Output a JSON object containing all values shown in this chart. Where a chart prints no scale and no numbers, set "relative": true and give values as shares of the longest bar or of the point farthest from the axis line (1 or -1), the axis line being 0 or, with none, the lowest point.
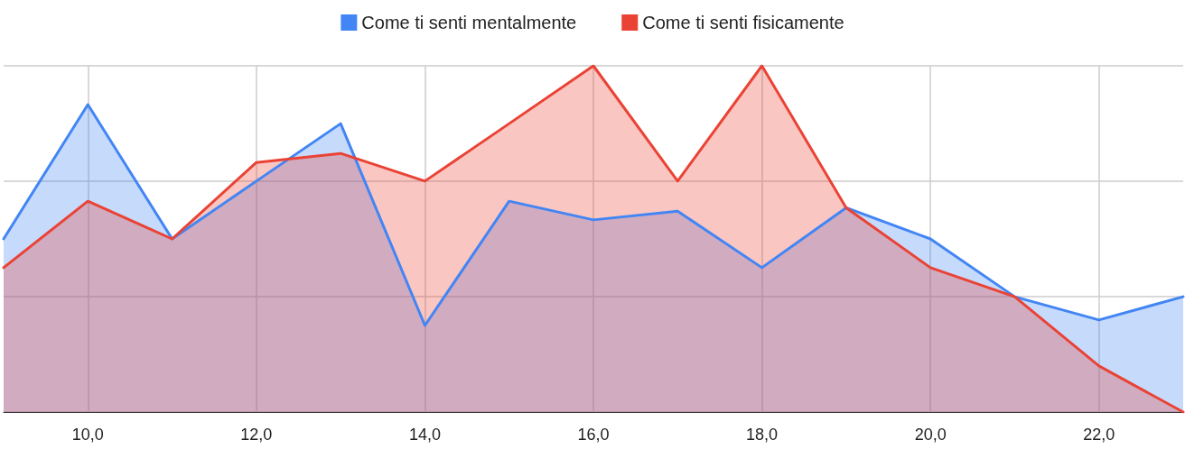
{
  "chart_data": {
    "type": "area",
    "relative": true,
    "x": [
      9,
      10,
      11,
      12,
      13,
      14,
      15,
      16,
      17,
      18,
      19,
      20,
      21,
      22,
      23
    ],
    "xlim": [
      9,
      23
    ],
    "xticks": [
      {
        "value": 10,
        "label": "10,0"
      },
      {
        "value": 12,
        "label": "12,0"
      },
      {
        "value": 14,
        "label": "14,0"
      },
      {
        "value": 16,
        "label": "16,0"
      },
      {
        "value": 18,
        "label": "18,0"
      },
      {
        "value": 20,
        "label": "20,0"
      },
      {
        "value": 22,
        "label": "22,0"
      }
    ],
    "series": [
      {
        "name": "Come ti senti mentalmente",
        "color": "#4285f4",
        "values": [
          0.5,
          0.888,
          0.5,
          0.667,
          0.833,
          0.25,
          0.609,
          0.555,
          0.58,
          0.417,
          0.59,
          0.5,
          0.333,
          0.266,
          0.333
        ]
      },
      {
        "name": "Come ti senti fisicamente",
        "color": "#ea4335",
        "values": [
          0.417,
          0.609,
          0.5,
          0.721,
          0.747,
          0.667,
          0.833,
          1,
          0.667,
          1,
          0.59,
          0.417,
          0.333,
          0.133,
          0
        ]
      }
    ],
    "grid": true,
    "legend": "top",
    "marker": "none",
    "line_style": "solid"
  }
}
